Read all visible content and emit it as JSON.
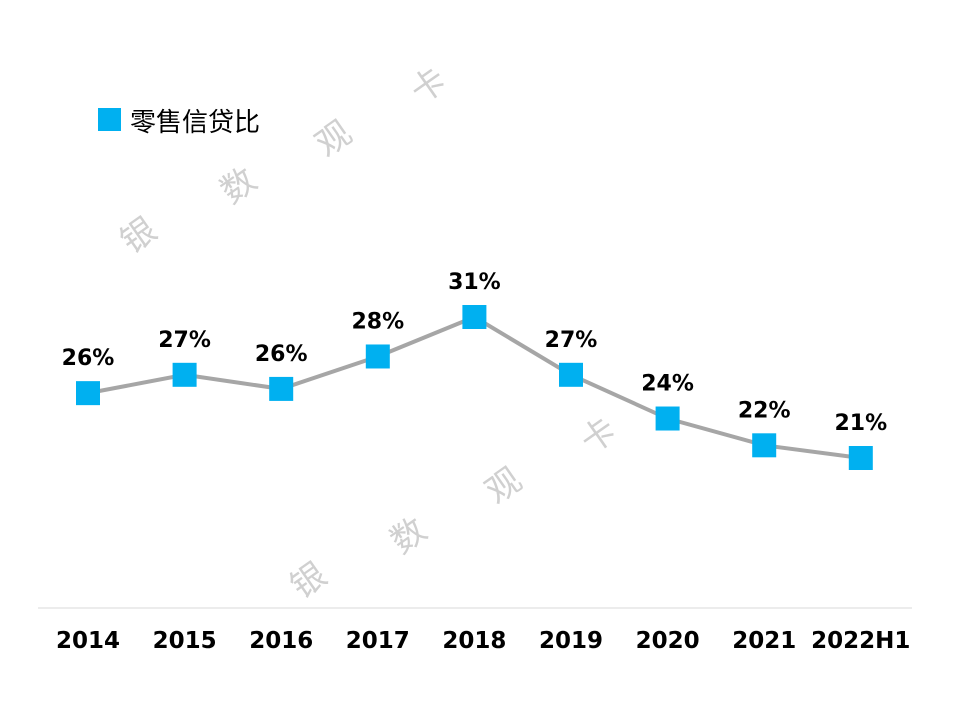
{
  "chart_data": {
    "type": "line",
    "categories": [
      "2014",
      "2015",
      "2016",
      "2017",
      "2018",
      "2019",
      "2020",
      "2021",
      "2022H1"
    ],
    "series": [
      {
        "name": "零售信贷比",
        "values": [
          25.6,
          26.9,
          25.9,
          28.2,
          31.0,
          26.9,
          23.8,
          21.9,
          21.0
        ],
        "data_labels": [
          "26%",
          "27%",
          "26%",
          "28%",
          "31%",
          "27%",
          "24%",
          "22%",
          "21%"
        ],
        "marker_color": "#00B0F0",
        "line_color": "#A6A6A6"
      }
    ],
    "legend_position": "top-left",
    "grid": false,
    "xlabel": "",
    "ylabel": ""
  },
  "watermark": [
    "银",
    "数",
    "观",
    "卡"
  ]
}
